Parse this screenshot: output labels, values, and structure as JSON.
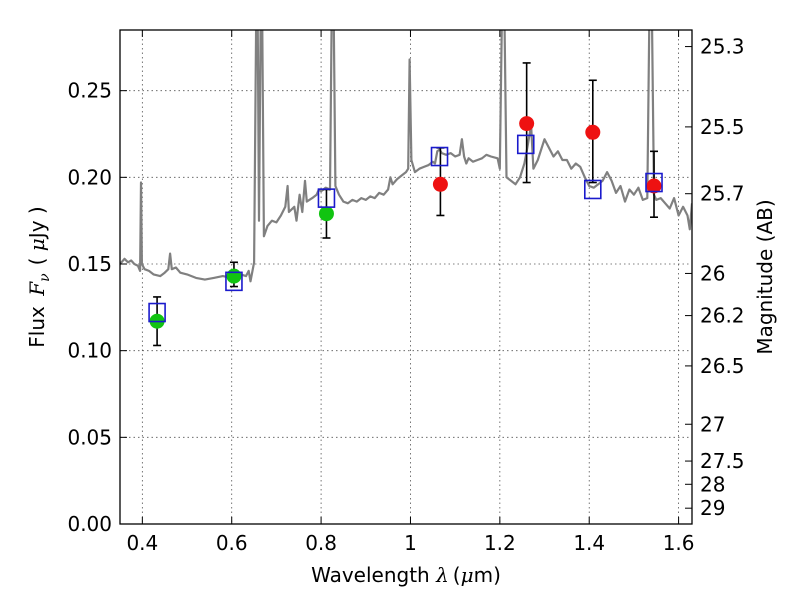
{
  "chart_data": {
    "type": "scatter",
    "title": "",
    "xlabel": {
      "prefix": "Wavelength ",
      "var": "λ",
      "units": "(",
      "mu": "μ",
      "unit": "m)"
    },
    "ylabel": {
      "prefix": "Flux ",
      "var": "F",
      "sub": "ν",
      "units": "( ",
      "mu": "μ",
      "unit": "Jy )"
    },
    "ylabel_right": "Magnitude (AB)",
    "xlim": [
      0.35,
      1.63
    ],
    "ylim": [
      0.0,
      0.285
    ],
    "grid": true,
    "x_ticks": [
      {
        "value": 0.4,
        "label": "0.4"
      },
      {
        "value": 0.6,
        "label": "0.6"
      },
      {
        "value": 0.8,
        "label": "0.8"
      },
      {
        "value": 1.0,
        "label": "1"
      },
      {
        "value": 1.2,
        "label": "1.2"
      },
      {
        "value": 1.4,
        "label": "1.4"
      },
      {
        "value": 1.6,
        "label": "1.6"
      }
    ],
    "y_ticks": [
      {
        "value": 0.0,
        "label": "0.00"
      },
      {
        "value": 0.05,
        "label": "0.05"
      },
      {
        "value": 0.1,
        "label": "0.10"
      },
      {
        "value": 0.15,
        "label": "0.15"
      },
      {
        "value": 0.2,
        "label": "0.20"
      },
      {
        "value": 0.25,
        "label": "0.25"
      }
    ],
    "right_ticks": [
      {
        "value": 25.3,
        "label": "25.3"
      },
      {
        "value": 25.5,
        "label": "25.5"
      },
      {
        "value": 25.7,
        "label": "25.7"
      },
      {
        "value": 26.0,
        "label": "26"
      },
      {
        "value": 26.2,
        "label": "26.2"
      },
      {
        "value": 26.5,
        "label": "26.5"
      },
      {
        "value": 27.0,
        "label": "27"
      },
      {
        "value": 27.5,
        "label": "27.5"
      },
      {
        "value": 28.0,
        "label": "28"
      },
      {
        "value": 29.0,
        "label": "29"
      }
    ],
    "colors": {
      "spectrum": "#808080",
      "green": "#11c411",
      "red": "#ee1111",
      "model": "#1a1acc",
      "errorbar": "#000000",
      "grid": "#555555"
    },
    "spectrum": [
      [
        0.35,
        0.15
      ],
      [
        0.36,
        0.153
      ],
      [
        0.368,
        0.151
      ],
      [
        0.375,
        0.152
      ],
      [
        0.382,
        0.15
      ],
      [
        0.39,
        0.149
      ],
      [
        0.395,
        0.146
      ],
      [
        0.397,
        0.197
      ],
      [
        0.399,
        0.15
      ],
      [
        0.405,
        0.147
      ],
      [
        0.415,
        0.146
      ],
      [
        0.425,
        0.144
      ],
      [
        0.44,
        0.143
      ],
      [
        0.45,
        0.145
      ],
      [
        0.458,
        0.147
      ],
      [
        0.462,
        0.156
      ],
      [
        0.466,
        0.147
      ],
      [
        0.475,
        0.148
      ],
      [
        0.485,
        0.145
      ],
      [
        0.5,
        0.144
      ],
      [
        0.52,
        0.142
      ],
      [
        0.54,
        0.141
      ],
      [
        0.56,
        0.142
      ],
      [
        0.58,
        0.143
      ],
      [
        0.6,
        0.142
      ],
      [
        0.62,
        0.144
      ],
      [
        0.632,
        0.143
      ],
      [
        0.638,
        0.146
      ],
      [
        0.642,
        0.14
      ],
      [
        0.65,
        0.151
      ],
      [
        0.655,
        0.3
      ],
      [
        0.658,
        0.3
      ],
      [
        0.661,
        0.175
      ],
      [
        0.665,
        0.3
      ],
      [
        0.668,
        0.3
      ],
      [
        0.672,
        0.166
      ],
      [
        0.68,
        0.172
      ],
      [
        0.69,
        0.175
      ],
      [
        0.7,
        0.174
      ],
      [
        0.71,
        0.178
      ],
      [
        0.72,
        0.183
      ],
      [
        0.725,
        0.195
      ],
      [
        0.728,
        0.18
      ],
      [
        0.74,
        0.183
      ],
      [
        0.745,
        0.175
      ],
      [
        0.752,
        0.19
      ],
      [
        0.758,
        0.18
      ],
      [
        0.764,
        0.198
      ],
      [
        0.768,
        0.186
      ],
      [
        0.78,
        0.188
      ],
      [
        0.79,
        0.19
      ],
      [
        0.795,
        0.193
      ],
      [
        0.8,
        0.192
      ],
      [
        0.81,
        0.194
      ],
      [
        0.82,
        0.193
      ],
      [
        0.824,
        0.3
      ],
      [
        0.828,
        0.3
      ],
      [
        0.832,
        0.195
      ],
      [
        0.84,
        0.19
      ],
      [
        0.85,
        0.186
      ],
      [
        0.86,
        0.185
      ],
      [
        0.87,
        0.187
      ],
      [
        0.88,
        0.186
      ],
      [
        0.89,
        0.188
      ],
      [
        0.9,
        0.187
      ],
      [
        0.91,
        0.189
      ],
      [
        0.92,
        0.188
      ],
      [
        0.93,
        0.191
      ],
      [
        0.94,
        0.19
      ],
      [
        0.95,
        0.193
      ],
      [
        0.955,
        0.2
      ],
      [
        0.96,
        0.196
      ],
      [
        0.97,
        0.199
      ],
      [
        0.98,
        0.201
      ],
      [
        0.99,
        0.203
      ],
      [
        0.995,
        0.205
      ],
      [
        0.998,
        0.268
      ],
      [
        1.002,
        0.21
      ],
      [
        1.01,
        0.203
      ],
      [
        1.02,
        0.205
      ],
      [
        1.03,
        0.206
      ],
      [
        1.04,
        0.207
      ],
      [
        1.05,
        0.209
      ],
      [
        1.055,
        0.208
      ],
      [
        1.06,
        0.215
      ],
      [
        1.065,
        0.216
      ],
      [
        1.07,
        0.214
      ],
      [
        1.08,
        0.213
      ],
      [
        1.09,
        0.214
      ],
      [
        1.1,
        0.212
      ],
      [
        1.11,
        0.213
      ],
      [
        1.115,
        0.222
      ],
      [
        1.12,
        0.212
      ],
      [
        1.125,
        0.208
      ],
      [
        1.13,
        0.211
      ],
      [
        1.14,
        0.209
      ],
      [
        1.15,
        0.21
      ],
      [
        1.16,
        0.211
      ],
      [
        1.17,
        0.213
      ],
      [
        1.18,
        0.212
      ],
      [
        1.195,
        0.211
      ],
      [
        1.2,
        0.205
      ],
      [
        1.205,
        0.3
      ],
      [
        1.21,
        0.3
      ],
      [
        1.215,
        0.2
      ],
      [
        1.225,
        0.198
      ],
      [
        1.235,
        0.196
      ],
      [
        1.245,
        0.2
      ],
      [
        1.255,
        0.208
      ],
      [
        1.26,
        0.215
      ],
      [
        1.27,
        0.23
      ],
      [
        1.275,
        0.205
      ],
      [
        1.285,
        0.21
      ],
      [
        1.3,
        0.222
      ],
      [
        1.31,
        0.217
      ],
      [
        1.32,
        0.212
      ],
      [
        1.33,
        0.215
      ],
      [
        1.34,
        0.21
      ],
      [
        1.35,
        0.21
      ],
      [
        1.36,
        0.205
      ],
      [
        1.37,
        0.208
      ],
      [
        1.38,
        0.206
      ],
      [
        1.39,
        0.2
      ],
      [
        1.4,
        0.195
      ],
      [
        1.41,
        0.194
      ],
      [
        1.42,
        0.196
      ],
      [
        1.43,
        0.198
      ],
      [
        1.44,
        0.203
      ],
      [
        1.45,
        0.198
      ],
      [
        1.46,
        0.191
      ],
      [
        1.47,
        0.195
      ],
      [
        1.48,
        0.186
      ],
      [
        1.49,
        0.193
      ],
      [
        1.5,
        0.19
      ],
      [
        1.51,
        0.194
      ],
      [
        1.52,
        0.187
      ],
      [
        1.53,
        0.188
      ],
      [
        1.535,
        0.3
      ],
      [
        1.54,
        0.3
      ],
      [
        1.545,
        0.19
      ],
      [
        1.55,
        0.187
      ],
      [
        1.56,
        0.188
      ],
      [
        1.57,
        0.185
      ],
      [
        1.58,
        0.182
      ],
      [
        1.59,
        0.188
      ],
      [
        1.6,
        0.178
      ],
      [
        1.61,
        0.183
      ],
      [
        1.62,
        0.178
      ],
      [
        1.625,
        0.17
      ],
      [
        1.63,
        0.185
      ]
    ],
    "series": [
      {
        "marker": "circle",
        "color": "green",
        "points": [
          {
            "x": 0.433,
            "y": 0.117
          },
          {
            "x": 0.605,
            "y": 0.143
          },
          {
            "x": 0.812,
            "y": 0.179
          }
        ]
      },
      {
        "marker": "circle",
        "color": "red",
        "points": [
          {
            "x": 1.067,
            "y": 0.196
          },
          {
            "x": 1.26,
            "y": 0.231
          },
          {
            "x": 1.408,
            "y": 0.226
          },
          {
            "x": 1.545,
            "y": 0.195
          }
        ]
      },
      {
        "marker": "square",
        "color": "model",
        "points": [
          {
            "x": 0.433,
            "y": 0.122
          },
          {
            "x": 0.605,
            "y": 0.14
          },
          {
            "x": 0.812,
            "y": 0.188
          },
          {
            "x": 1.065,
            "y": 0.212
          },
          {
            "x": 1.258,
            "y": 0.219
          },
          {
            "x": 1.408,
            "y": 0.193
          },
          {
            "x": 1.545,
            "y": 0.197
          }
        ]
      }
    ],
    "error_bars": [
      {
        "x": 0.433,
        "y": 0.117,
        "low": 0.103,
        "high": 0.131
      },
      {
        "x": 0.605,
        "y": 0.143,
        "low": 0.137,
        "high": 0.151
      },
      {
        "x": 0.812,
        "y": 0.179,
        "low": 0.165,
        "high": 0.193
      },
      {
        "x": 1.067,
        "y": 0.196,
        "low": 0.178,
        "high": 0.217
      },
      {
        "x": 1.26,
        "y": 0.231,
        "low": 0.197,
        "high": 0.266
      },
      {
        "x": 1.408,
        "y": 0.226,
        "low": 0.197,
        "high": 0.256
      },
      {
        "x": 1.545,
        "y": 0.195,
        "low": 0.177,
        "high": 0.215
      }
    ]
  }
}
